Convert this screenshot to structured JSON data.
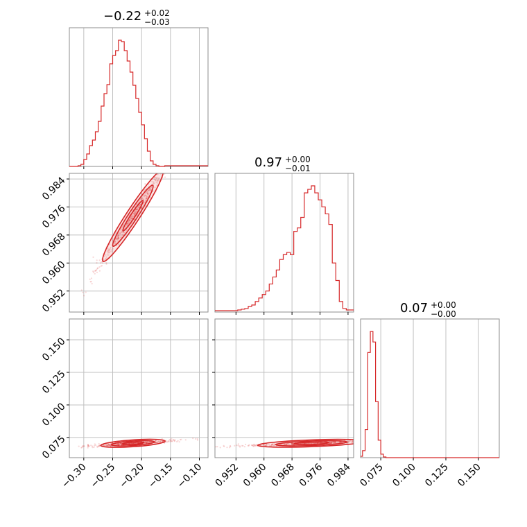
{
  "chart_data": {
    "type": "corner",
    "color": "#d62728",
    "grid": true,
    "parameters": [
      {
        "title": {
          "value": "−0.22",
          "plus": "+0.02",
          "minus": "−0.03"
        },
        "range": [
          -0.325,
          -0.085
        ],
        "ticks": [
          -0.3,
          -0.25,
          -0.2,
          -0.15,
          -0.1
        ],
        "tick_labels": [
          "−0.30",
          "−0.25",
          "−0.20",
          "−0.15",
          "−0.10"
        ],
        "histogram": {
          "bin_edges": [
            -0.325,
            -0.31,
            -0.305,
            -0.3,
            -0.295,
            -0.29,
            -0.285,
            -0.28,
            -0.275,
            -0.27,
            -0.265,
            -0.26,
            -0.255,
            -0.25,
            -0.245,
            -0.24,
            -0.235,
            -0.23,
            -0.225,
            -0.22,
            -0.215,
            -0.21,
            -0.205,
            -0.2,
            -0.195,
            -0.19,
            -0.185,
            -0.18,
            -0.175,
            -0.17,
            -0.165,
            -0.16,
            -0.085
          ],
          "counts": [
            0,
            1,
            3,
            10,
            18,
            30,
            38,
            50,
            65,
            87,
            105,
            118,
            148,
            160,
            167,
            182,
            180,
            167,
            152,
            136,
            117,
            98,
            78,
            60,
            40,
            22,
            8,
            3,
            1,
            0,
            0,
            1
          ]
        }
      },
      {
        "title": {
          "value": "0.97",
          "plus": "+0.00",
          "minus": "−0.01"
        },
        "range": [
          0.946,
          0.9856
        ],
        "ticks": [
          0.952,
          0.96,
          0.968,
          0.976,
          0.984
        ],
        "tick_labels": [
          "0.952",
          "0.960",
          "0.968",
          "0.976",
          "0.984"
        ],
        "histogram": {
          "bin_edges": [
            0.946,
            0.9525,
            0.9535,
            0.9545,
            0.9555,
            0.9565,
            0.9575,
            0.9585,
            0.9595,
            0.9605,
            0.9615,
            0.9625,
            0.9635,
            0.9645,
            0.9655,
            0.9665,
            0.9675,
            0.9685,
            0.9695,
            0.9705,
            0.9715,
            0.9725,
            0.9735,
            0.9745,
            0.9755,
            0.9765,
            0.9775,
            0.9785,
            0.9795,
            0.9805,
            0.9815,
            0.9825,
            0.9835,
            0.9856
          ],
          "counts": [
            2,
            3,
            4,
            5,
            8,
            10,
            15,
            20,
            25,
            30,
            40,
            50,
            60,
            75,
            82,
            85,
            82,
            115,
            120,
            135,
            170,
            175,
            180,
            170,
            160,
            150,
            140,
            125,
            70,
            45,
            15,
            5,
            3
          ]
        }
      },
      {
        "title": {
          "value": "0.07",
          "plus": "+0.00",
          "minus": "−0.00"
        },
        "range": [
          0.0595,
          0.166
        ],
        "ticks": [
          0.075,
          0.1,
          0.125,
          0.15
        ],
        "tick_labels": [
          "0.075",
          "0.100",
          "0.125",
          "0.150"
        ],
        "histogram": {
          "bin_edges": [
            0.0595,
            0.061,
            0.063,
            0.065,
            0.067,
            0.069,
            0.071,
            0.073,
            0.075,
            0.077,
            0.079,
            0.166
          ],
          "counts": [
            2,
            10,
            40,
            150,
            180,
            165,
            80,
            25,
            5,
            1,
            0
          ]
        }
      }
    ],
    "pairs": [
      {
        "x_param": 0,
        "y_param": 1,
        "center": [
          -0.215,
          0.9735
        ],
        "axis_dir": [
          0.115,
          0.029
        ],
        "sigma_major": 0.3,
        "sigma_minor": 0.018,
        "tilt_deg": 0,
        "contour_levels": [
          0.5,
          1.0,
          1.5
        ]
      },
      {
        "x_param": 0,
        "y_param": 2,
        "center": [
          -0.215,
          0.0705
        ],
        "axis_dir": [
          0.06,
          0.0018
        ],
        "sigma_major": 0.62,
        "sigma_minor": 0.003,
        "tilt_deg": 0,
        "contour_levels": [
          0.5,
          1.0,
          1.5
        ]
      },
      {
        "x_param": 1,
        "y_param": 2,
        "center": [
          0.9735,
          0.0705
        ],
        "axis_dir": [
          0.012,
          0.0012
        ],
        "sigma_major": 0.85,
        "sigma_minor": 0.003,
        "tilt_deg": 0,
        "contour_levels": [
          0.5,
          1.0,
          1.5
        ]
      }
    ]
  }
}
